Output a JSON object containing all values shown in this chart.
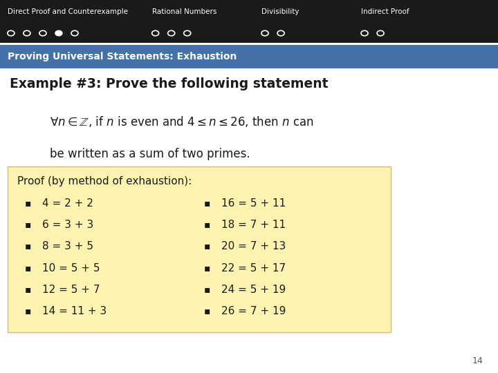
{
  "nav_bg_color": "#1a1a1a",
  "nav_sections": [
    {
      "label": "Direct Proof and Counterexample",
      "dots": [
        0,
        0,
        0,
        1,
        0
      ]
    },
    {
      "label": "Rational Numbers",
      "dots": [
        0,
        0,
        0
      ]
    },
    {
      "label": "Divisibility",
      "dots": [
        0,
        0
      ]
    },
    {
      "label": "Indirect Proof",
      "dots": [
        0,
        0
      ]
    }
  ],
  "section_bar_color": "#4472a8",
  "section_bar_text": "Proving Universal Statements: Exhaustion",
  "section_bar_text_color": "#ffffff",
  "bg_color": "#ffffff",
  "example_title": "Example #3: Prove the following statement",
  "statement_line2": "be written as a sum of two primes.",
  "proof_box_color": "#fdf3b0",
  "proof_title": "Proof (by method of exhaustion):",
  "proof_items_left": [
    "4 = 2 + 2",
    "6 = 3 + 3",
    "8 = 3 + 5",
    "10 = 5 + 5",
    "12 = 5 + 7",
    "14 = 11 + 3"
  ],
  "proof_items_right": [
    "16 = 5 + 11",
    "18 = 7 + 11",
    "20 = 7 + 13",
    "22 = 5 + 17",
    "24 = 5 + 19",
    "26 = 7 + 19"
  ],
  "page_number": "14",
  "section_starts": [
    0.01,
    0.3,
    0.52,
    0.72
  ]
}
